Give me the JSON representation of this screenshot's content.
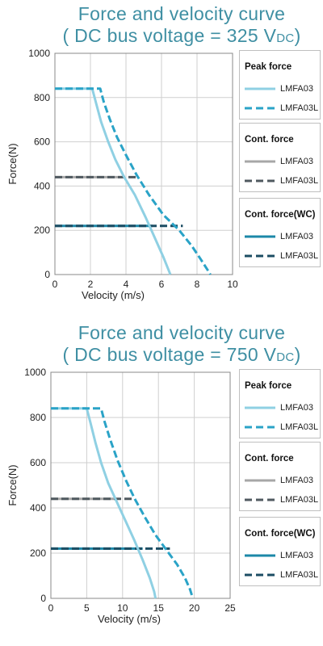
{
  "chart_data": [
    {
      "type": "line",
      "title": "Force and velocity curve",
      "subtitle_prefix": "( DC bus voltage = 325 V",
      "subtitle_sub": "DC",
      "subtitle_suffix": ")",
      "xlabel": "Velocity (m/s)",
      "ylabel": "Force(N)",
      "xlim": [
        0,
        10
      ],
      "ylim": [
        0,
        1000
      ],
      "xticks": [
        "0",
        "2",
        "4",
        "6",
        "8",
        "10"
      ],
      "yticks": [
        "0",
        "200",
        "400",
        "600",
        "800",
        "1000"
      ],
      "grid": true,
      "legend_position": "right",
      "series": [
        {
          "name": "LMFA03",
          "group": "Peak force",
          "color": "#8fd0e3",
          "dash": false,
          "points": [
            [
              0,
              840
            ],
            [
              2.1,
              840
            ],
            [
              2.3,
              780
            ],
            [
              2.6,
              690
            ],
            [
              3,
              600
            ],
            [
              3.4,
              520
            ],
            [
              3.9,
              440
            ],
            [
              4.5,
              360
            ],
            [
              5.1,
              260
            ],
            [
              5.6,
              170
            ],
            [
              6.1,
              80
            ],
            [
              6.4,
              20
            ],
            [
              6.5,
              0
            ]
          ]
        },
        {
          "name": "LMFA03L",
          "group": "Peak force",
          "color": "#2aa3c7",
          "dash": true,
          "points": [
            [
              0,
              840
            ],
            [
              2.55,
              840
            ],
            [
              2.75,
              780
            ],
            [
              3.1,
              700
            ],
            [
              3.5,
              620
            ],
            [
              4,
              540
            ],
            [
              4.6,
              450
            ],
            [
              5.3,
              360
            ],
            [
              6.1,
              270
            ],
            [
              7,
              200
            ],
            [
              7.7,
              130
            ],
            [
              8.2,
              70
            ],
            [
              8.6,
              20
            ],
            [
              8.75,
              0
            ]
          ]
        },
        {
          "name": "LMFA03",
          "group": "Cont. force",
          "color": "#a7a7a7",
          "dash": false,
          "points": [
            [
              0,
              440
            ],
            [
              3.9,
              440
            ]
          ]
        },
        {
          "name": "LMFA03L",
          "group": "Cont. force",
          "color": "#505a60",
          "dash": true,
          "points": [
            [
              0,
              440
            ],
            [
              4.6,
              440
            ]
          ]
        },
        {
          "name": "LMFA03",
          "group": "Cont. force(WC)",
          "color": "#1c88a8",
          "dash": false,
          "points": [
            [
              0,
              220
            ],
            [
              5.5,
              220
            ]
          ]
        },
        {
          "name": "LMFA03L",
          "group": "Cont. force(WC)",
          "color": "#1c4d63",
          "dash": true,
          "points": [
            [
              0,
              220
            ],
            [
              7.2,
              220
            ]
          ]
        }
      ]
    },
    {
      "type": "line",
      "title": "Force and velocity curve",
      "subtitle_prefix": "( DC bus voltage = 750 V",
      "subtitle_sub": "DC",
      "subtitle_suffix": ")",
      "xlabel": "Velocity (m/s)",
      "ylabel": "Force(N)",
      "xlim": [
        0,
        25
      ],
      "ylim": [
        0,
        1000
      ],
      "xticks": [
        "0",
        "5",
        "10",
        "15",
        "20",
        "25"
      ],
      "yticks": [
        "0",
        "200",
        "400",
        "600",
        "800",
        "1000"
      ],
      "grid": true,
      "legend_position": "right",
      "series": [
        {
          "name": "LMFA03",
          "group": "Peak force",
          "color": "#8fd0e3",
          "dash": false,
          "points": [
            [
              0,
              840
            ],
            [
              5,
              840
            ],
            [
              5.5,
              780
            ],
            [
              6.2,
              690
            ],
            [
              7,
              600
            ],
            [
              8,
              510
            ],
            [
              9,
              440
            ],
            [
              10.3,
              350
            ],
            [
              11.6,
              260
            ],
            [
              12.8,
              170
            ],
            [
              13.8,
              90
            ],
            [
              14.4,
              30
            ],
            [
              14.6,
              0
            ]
          ]
        },
        {
          "name": "LMFA03L",
          "group": "Peak force",
          "color": "#2aa3c7",
          "dash": true,
          "points": [
            [
              0,
              840
            ],
            [
              7,
              840
            ],
            [
              7.5,
              780
            ],
            [
              8.3,
              700
            ],
            [
              9.3,
              610
            ],
            [
              10.5,
              520
            ],
            [
              11.7,
              440
            ],
            [
              13.1,
              360
            ],
            [
              14.6,
              280
            ],
            [
              16.2,
              210
            ],
            [
              17.6,
              150
            ],
            [
              18.7,
              90
            ],
            [
              19.4,
              40
            ],
            [
              19.8,
              0
            ]
          ]
        },
        {
          "name": "LMFA03",
          "group": "Cont. force",
          "color": "#a7a7a7",
          "dash": false,
          "points": [
            [
              0,
              440
            ],
            [
              9,
              440
            ]
          ]
        },
        {
          "name": "LMFA03L",
          "group": "Cont. force",
          "color": "#505a60",
          "dash": true,
          "points": [
            [
              0,
              440
            ],
            [
              11.7,
              440
            ]
          ]
        },
        {
          "name": "LMFA03",
          "group": "Cont. force(WC)",
          "color": "#1c88a8",
          "dash": false,
          "points": [
            [
              0,
              220
            ],
            [
              12.8,
              220
            ]
          ]
        },
        {
          "name": "LMFA03L",
          "group": "Cont. force(WC)",
          "color": "#1c4d63",
          "dash": true,
          "points": [
            [
              0,
              220
            ],
            [
              16.6,
              220
            ]
          ]
        }
      ]
    }
  ],
  "legend_groups": [
    {
      "title": "Peak force",
      "items": [
        {
          "label": "LMFA03",
          "color": "#8fd0e3",
          "dash": false
        },
        {
          "label": "LMFA03L",
          "color": "#2aa3c7",
          "dash": true
        }
      ]
    },
    {
      "title": "Cont. force",
      "items": [
        {
          "label": "LMFA03",
          "color": "#a7a7a7",
          "dash": false
        },
        {
          "label": "LMFA03L",
          "color": "#505a60",
          "dash": true
        }
      ]
    },
    {
      "title": "Cont. force(WC)",
      "items": [
        {
          "label": "LMFA03",
          "color": "#1c88a8",
          "dash": false
        },
        {
          "label": "LMFA03L",
          "color": "#1c4d63",
          "dash": true
        }
      ]
    }
  ]
}
